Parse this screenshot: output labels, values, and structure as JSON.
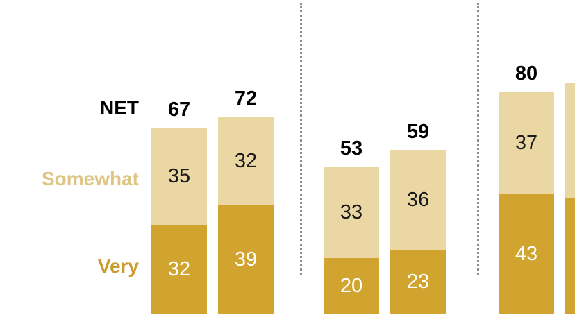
{
  "chart_data": {
    "type": "bar",
    "stacked": true,
    "orientation": "vertical",
    "legend": {
      "net": "NET",
      "somewhat": "Somewhat",
      "very": "Very"
    },
    "colors": {
      "very": "#D1A42F",
      "somewhat": "#EBD7A4",
      "net_text": "#000000",
      "somewhat_label_text": "#DFC584",
      "very_label_text": "#C99B2B",
      "divider": "#8C8C8C"
    },
    "layout_hints": {
      "groups_separated_by": "dotted vertical lines",
      "value_labels": "inside segments; NET totals bold above bars",
      "rightmost_bar": "cut off at right edge of image, values not visible"
    },
    "groups": [
      {
        "bars": [
          {
            "net": 67,
            "somewhat": 35,
            "very": 32
          },
          {
            "net": 72,
            "somewhat": 32,
            "very": 39
          }
        ]
      },
      {
        "bars": [
          {
            "net": 53,
            "somewhat": 33,
            "very": 20
          },
          {
            "net": 59,
            "somewhat": 36,
            "very": 23
          }
        ]
      },
      {
        "bars": [
          {
            "net": 80,
            "somewhat": 37,
            "very": 43
          }
        ],
        "partial_bar_cut_at_right_edge": true
      }
    ]
  }
}
